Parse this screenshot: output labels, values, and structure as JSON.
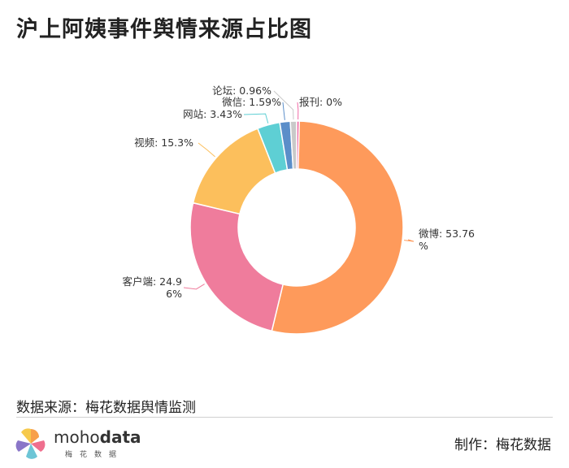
{
  "title": "沪上阿姨事件舆情来源占比图",
  "source": "数据来源：梅花数据舆情监测",
  "credit": "制作：梅花数据",
  "logo": {
    "word_light": "moho",
    "word_bold": "data",
    "sub": "梅花数据"
  },
  "chart_data": {
    "type": "pie",
    "donut": true,
    "categories": [
      "微博",
      "客户端",
      "视频",
      "网站",
      "微信",
      "论坛",
      "报刊"
    ],
    "values": [
      53.76,
      24.96,
      15.3,
      3.43,
      1.59,
      0.96,
      0
    ],
    "labels": [
      [
        "微博: 53.76",
        "%"
      ],
      [
        "客户端: 24.9",
        "6%"
      ],
      [
        "视频: 15.3%"
      ],
      [
        "网站: 3.43%"
      ],
      [
        "微信: 1.59%"
      ],
      [
        "论坛: 0.96%"
      ],
      [
        "报刊: 0%"
      ]
    ],
    "colors": [
      "#fe9a5b",
      "#ef7c9c",
      "#fcbf5c",
      "#5ecfd4",
      "#5b8ec9",
      "#c9c9c9",
      "#f06aa6"
    ]
  }
}
